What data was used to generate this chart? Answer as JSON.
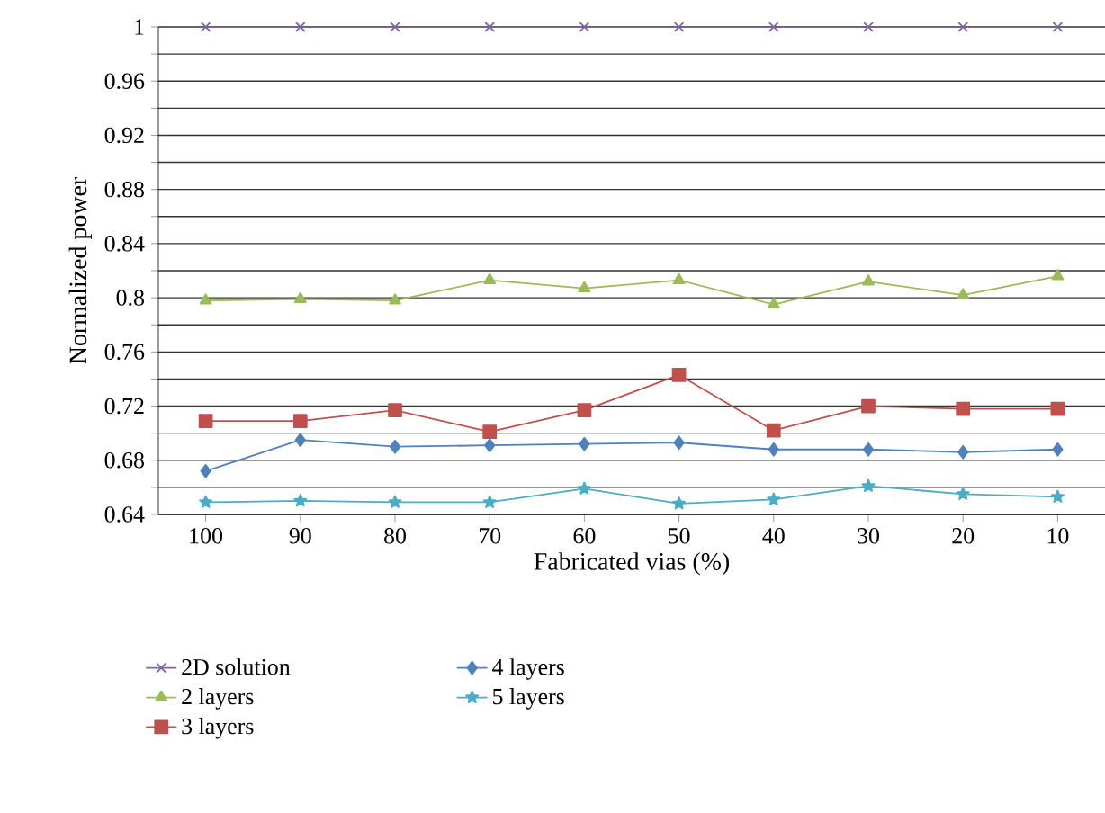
{
  "chart_data": {
    "type": "line",
    "xlabel": "Fabricated vias (%)",
    "ylabel": "Normalized power",
    "categories": [
      "100",
      "90",
      "80",
      "70",
      "60",
      "50",
      "40",
      "30",
      "20",
      "10"
    ],
    "ylim": [
      0.64,
      1
    ],
    "yticks": [
      0.64,
      {
        "value": 0.66,
        "label": null
      },
      0.68,
      {
        "value": 0.7,
        "label": null
      },
      0.72,
      {
        "value": 0.74,
        "label": null
      },
      0.76,
      {
        "value": 0.78,
        "label": null
      },
      0.8,
      {
        "value": 0.82,
        "label": null
      },
      0.84,
      {
        "value": 0.86,
        "label": null
      },
      0.88,
      {
        "value": 0.9,
        "label": null
      },
      0.92,
      {
        "value": 0.94,
        "label": null
      },
      0.96,
      {
        "value": 0.98,
        "label": null
      },
      1
    ],
    "grid": "y",
    "legend": "bottom",
    "line_style": "solid",
    "series": [
      {
        "name": "2D solution",
        "color": "#7f64a2",
        "marker": "cross",
        "values": [
          1,
          1,
          1,
          1,
          1,
          1,
          1,
          1,
          1,
          1
        ]
      },
      {
        "name": "2 layers",
        "color": "#9bbb59",
        "marker": "triangle",
        "values": [
          0.798,
          0.799,
          0.798,
          0.813,
          0.807,
          0.813,
          0.795,
          0.812,
          0.802,
          0.816
        ]
      },
      {
        "name": "3 layers",
        "color": "#c0504d",
        "marker": "square",
        "values": [
          0.709,
          0.709,
          0.717,
          0.701,
          0.717,
          0.743,
          0.702,
          0.72,
          0.718,
          0.718
        ]
      },
      {
        "name": "4 layers",
        "color": "#4f81bd",
        "marker": "diamond",
        "values": [
          0.672,
          0.695,
          0.69,
          0.691,
          0.692,
          0.693,
          0.688,
          0.688,
          0.686,
          0.688
        ]
      },
      {
        "name": "5 layers",
        "color": "#4bacc6",
        "marker": "star",
        "values": [
          0.649,
          0.65,
          0.649,
          0.649,
          0.659,
          0.648,
          0.651,
          0.661,
          0.655,
          0.653
        ]
      }
    ]
  }
}
